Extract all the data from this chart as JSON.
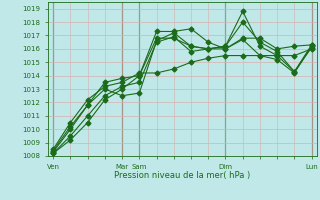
{
  "xlabel": "Pression niveau de la mer( hPa )",
  "bg_color": "#c0e8e8",
  "grid_color": "#d8b0b0",
  "line_color": "#1a6b1a",
  "dark_vline_color": "#2a5a2a",
  "ylim": [
    1008,
    1019.5
  ],
  "ytick_vals": [
    1008,
    1009,
    1010,
    1011,
    1012,
    1013,
    1014,
    1015,
    1016,
    1017,
    1018,
    1019
  ],
  "x_ticks_pos": [
    0,
    4,
    5,
    10,
    15
  ],
  "x_tick_labels": [
    "Ven",
    "Mar",
    "Sam",
    "Dim",
    "Lun"
  ],
  "dark_vlines": [
    0,
    4,
    5,
    10,
    15
  ],
  "n_points": 16,
  "lines": [
    {
      "x": [
        0,
        1,
        2,
        3,
        4,
        5,
        6,
        7,
        8,
        9,
        10,
        11,
        12,
        13,
        14,
        15
      ],
      "y": [
        1008.2,
        1009.2,
        1010.5,
        1012.2,
        1013.0,
        1014.0,
        1017.3,
        1017.3,
        1017.5,
        1016.5,
        1016.0,
        1016.8,
        1016.8,
        1016.0,
        1016.2,
        1016.3
      ]
    },
    {
      "x": [
        0,
        1,
        2,
        3,
        4,
        5,
        6,
        7,
        8,
        9,
        10,
        11,
        12,
        13,
        14,
        15
      ],
      "y": [
        1008.2,
        1009.5,
        1011.0,
        1012.5,
        1013.2,
        1013.5,
        1016.5,
        1016.9,
        1015.8,
        1016.0,
        1016.2,
        1018.0,
        1016.5,
        1015.8,
        1014.3,
        1016.3
      ]
    },
    {
      "x": [
        0,
        1,
        2,
        3,
        4,
        5,
        6,
        7,
        8,
        9,
        10,
        11,
        12,
        13,
        14,
        15
      ],
      "y": [
        1008.3,
        1010.0,
        1011.8,
        1013.0,
        1012.5,
        1012.7,
        1016.6,
        1017.2,
        1016.2,
        1016.0,
        1016.2,
        1018.8,
        1016.2,
        1015.5,
        1014.3,
        1016.1
      ]
    },
    {
      "x": [
        0,
        1,
        2,
        3,
        4,
        5,
        6,
        7,
        8,
        9,
        10,
        11,
        12,
        13,
        14,
        15
      ],
      "y": [
        1008.4,
        1010.2,
        1011.8,
        1013.5,
        1013.8,
        1014.0,
        1016.8,
        1016.8,
        1016.2,
        1016.0,
        1016.0,
        1016.7,
        1015.5,
        1015.2,
        1014.2,
        1016.2
      ]
    },
    {
      "x": [
        0,
        1,
        2,
        3,
        4,
        5,
        6,
        7,
        8,
        9,
        10,
        11,
        12,
        13,
        14,
        15
      ],
      "y": [
        1008.5,
        1010.5,
        1012.2,
        1013.2,
        1013.5,
        1014.2,
        1014.2,
        1014.5,
        1015.0,
        1015.3,
        1015.5,
        1015.5,
        1015.5,
        1015.5,
        1015.5,
        1016.0
      ]
    }
  ],
  "marker": "D",
  "markersize": 2.5,
  "linewidth": 0.8
}
